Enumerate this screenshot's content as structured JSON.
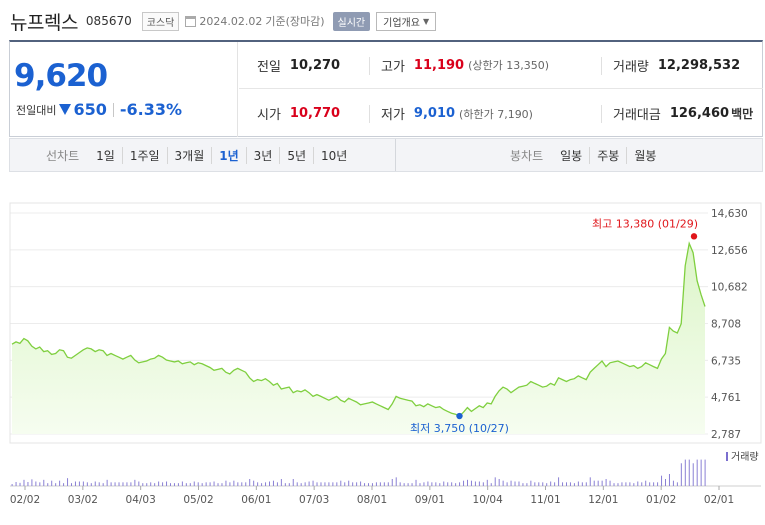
{
  "header": {
    "stock_name": "뉴프렉스",
    "stock_code": "085670",
    "market": "코스닥",
    "date": "2024.02.02",
    "date_suffix": "기준(장마감)",
    "realtime_label": "실시간",
    "company_info_label": "기업개요",
    "company_info_icon": "chevron-down-icon"
  },
  "summary": {
    "current_price": "9,620",
    "change_label": "전일대비",
    "change_amount": "650",
    "change_rate": "-6.33%",
    "prev_close_label": "전일",
    "prev_close": "10,270",
    "high_label": "고가",
    "high": "11,190",
    "upper_limit": "(상한가 13,350)",
    "volume_label": "거래량",
    "volume": "12,298,532",
    "open_label": "시가",
    "open": "10,770",
    "low_label": "저가",
    "low": "9,010",
    "lower_limit": "(하한가 7,190)",
    "trade_value_label": "거래대금",
    "trade_value": "126,460",
    "trade_value_unit": "백만",
    "colors": {
      "up": "#d9001b",
      "down": "#1b61d1"
    }
  },
  "period_bar": {
    "line_chart_label": "선차트",
    "line_periods": [
      "1일",
      "1주일",
      "3개월",
      "1년",
      "3년",
      "5년",
      "10년"
    ],
    "selected_period": "1년",
    "candle_chart_label": "봉차트",
    "candle_periods": [
      "일봉",
      "주봉",
      "월봉"
    ]
  },
  "chart_data": {
    "type": "area",
    "y_ticks": [
      "14,630",
      "12,656",
      "10,682",
      "8,708",
      "6,735",
      "4,761",
      "2,787"
    ],
    "x_ticks": [
      "02/02",
      "03/02",
      "04/03",
      "05/02",
      "06/01",
      "07/03",
      "08/01",
      "09/01",
      "10/04",
      "11/01",
      "12/01",
      "01/02",
      "02/01"
    ],
    "ylim": [
      2787,
      14630
    ],
    "high_annotation": "최고 13,380 (01/29)",
    "low_annotation": "최저 3,750 (10/27)",
    "volume_label": "거래량",
    "series": [
      {
        "values": [
          7600,
          7720,
          7650,
          7900,
          7780,
          7500,
          7350,
          7450,
          7200,
          7250,
          7050,
          7100,
          7300,
          7250,
          6900,
          6850,
          7000,
          7150,
          7300,
          7400,
          7350,
          7200,
          7300,
          7250,
          7000,
          7100,
          7000,
          6900,
          6800,
          6900,
          7000,
          6750,
          6600,
          6650,
          6700,
          6800,
          6850,
          7000,
          6900,
          6750,
          6700,
          6650,
          6700,
          6550,
          6600,
          6650,
          6500,
          6600,
          6550,
          6450,
          6350,
          6200,
          6250,
          6300,
          6100,
          6000,
          6200,
          6300,
          6200,
          6100,
          5800,
          5600,
          5700,
          5650,
          5750,
          5600,
          5400,
          5500,
          5200,
          5250,
          5300,
          5000,
          5100,
          5050,
          5150,
          5000,
          4800,
          4900,
          4800,
          4700,
          4600,
          4700,
          4800,
          4600,
          4500,
          4700,
          4600,
          4500,
          4350,
          4400,
          4450,
          4500,
          4400,
          4300,
          4200,
          4100,
          4400,
          4800,
          4700,
          4650,
          4600,
          4550,
          4300,
          4350,
          4250,
          4400,
          4300,
          4200,
          4250,
          4100,
          4000,
          3900,
          3850,
          3750,
          3950,
          4200,
          4000,
          4150,
          4300,
          4200,
          4450,
          4400,
          4800,
          5100,
          5300,
          5200,
          5000,
          5150,
          5300,
          5350,
          5400,
          5600,
          5500,
          5400,
          5300,
          5350,
          5500,
          5400,
          5800,
          5700,
          5600,
          5700,
          5750,
          5900,
          5800,
          5700,
          6100,
          6300,
          6500,
          6700,
          6400,
          6600,
          6650,
          6700,
          6600,
          6500,
          6400,
          6450,
          6300,
          6400,
          6600,
          6500,
          6400,
          6300,
          6800,
          7100,
          8500,
          8300,
          8200,
          8700,
          11800,
          13000,
          12500,
          11000,
          10270,
          9620
        ]
      }
    ]
  }
}
